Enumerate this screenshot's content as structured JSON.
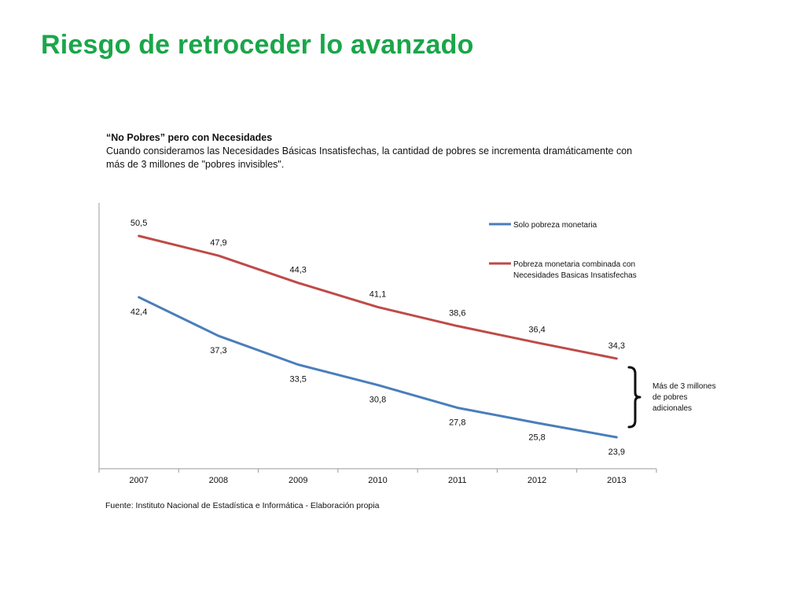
{
  "slide": {
    "title": "Riesgo de retroceder lo avanzado",
    "heading": "“No Pobres” pero con Necesidades",
    "description": "Cuando consideramos las Necesidades Básicas Insatisfechas, la cantidad de pobres se incrementa dramáticamente con más de 3 millones de \"pobres invisibles\".",
    "source": "Fuente: Instituto Nacional de Estadística e Informática - Elaboración propia"
  },
  "chart_data": {
    "type": "line",
    "title": "",
    "xlabel": "",
    "ylabel": "",
    "x": [
      "2007",
      "2008",
      "2009",
      "2010",
      "2011",
      "2012",
      "2013"
    ],
    "ylim": [
      20,
      55
    ],
    "grid": false,
    "legend_position": "top-right",
    "series": [
      {
        "name": "Solo pobreza monetaria",
        "color": "#4a7ebb",
        "values": [
          42.4,
          37.3,
          33.5,
          30.8,
          27.8,
          25.8,
          23.9
        ],
        "labels": [
          "42,4",
          "37,3",
          "33,5",
          "30,8",
          "27,8",
          "25,8",
          "23,9"
        ]
      },
      {
        "name": "Pobreza monetaria combinada con Necesidades Basicas Insatisfechas",
        "name_lines": [
          "Pobreza monetaria combinada con",
          "Necesidades Basicas Insatisfechas"
        ],
        "color": "#be4b48",
        "values": [
          50.5,
          47.9,
          44.3,
          41.1,
          38.6,
          36.4,
          34.3
        ],
        "labels": [
          "50,5",
          "47,9",
          "44,3",
          "41,1",
          "38,6",
          "36,4",
          "34,3"
        ]
      }
    ],
    "annotation": {
      "lines": [
        "Más de 3 millones",
        "de pobres",
        "adicionales"
      ]
    }
  }
}
